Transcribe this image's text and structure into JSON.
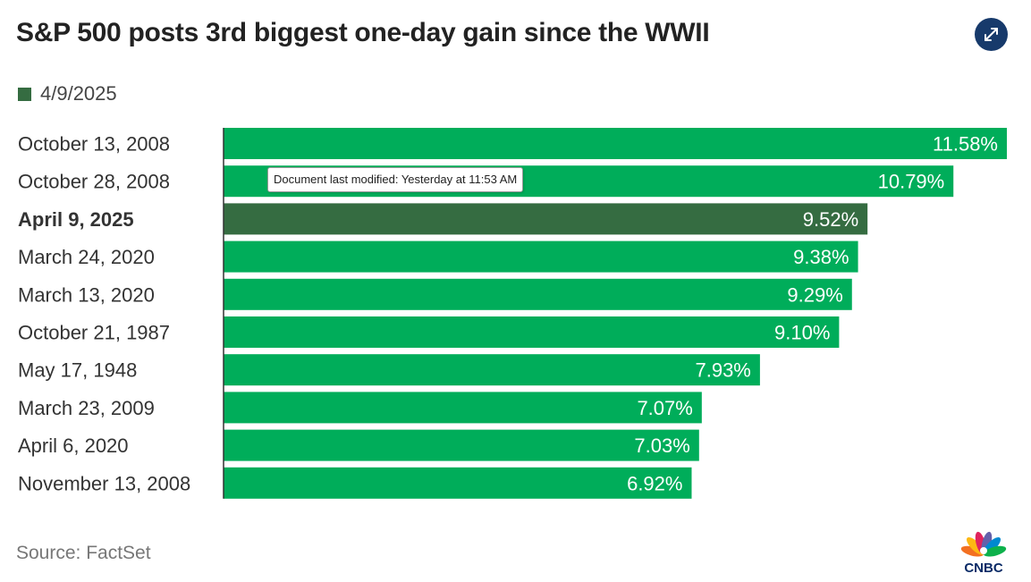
{
  "header": {
    "title": "S&P 500 posts 3rd biggest one-day gain since the WWII",
    "expand_icon": "expand-arrows-icon"
  },
  "tooltip": {
    "text": "Document last modified: Yesterday at 11:53 AM"
  },
  "footer": {
    "source": "Source: FactSet",
    "logo_text": "CNBC"
  },
  "colors": {
    "bar": "#00ad5a",
    "highlight": "#356c41",
    "text_on_bar": "#ffffff",
    "expand_button": "#173a6b"
  },
  "chart_data": {
    "type": "bar",
    "orientation": "horizontal",
    "title": "S&P 500 posts 3rd biggest one-day gain since the WWII",
    "legend": [
      {
        "label": "4/9/2025",
        "color": "#356c41"
      }
    ],
    "categories": [
      "October 13, 2008",
      "October 28, 2008",
      "April 9, 2025",
      "March 24, 2020",
      "March 13, 2020",
      "October 21, 1987",
      "May 17, 1948",
      "March 23, 2009",
      "April 6, 2020",
      "November 13, 2008"
    ],
    "values": [
      11.58,
      10.79,
      9.52,
      9.38,
      9.29,
      9.1,
      7.93,
      7.07,
      7.03,
      6.92
    ],
    "value_labels": [
      "11.58%",
      "10.79%",
      "9.52%",
      "9.38%",
      "9.29%",
      "9.10%",
      "7.93%",
      "7.07%",
      "7.03%",
      "6.92%"
    ],
    "highlight_index": 2,
    "xlim": [
      0,
      11.58
    ],
    "unit": "%",
    "source": "Source: FactSet"
  }
}
